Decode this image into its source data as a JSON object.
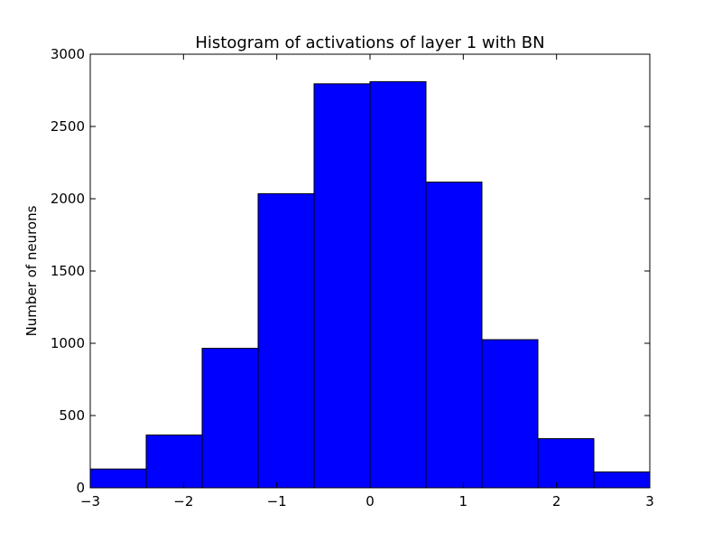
{
  "chart_data": {
    "type": "bar",
    "title": "Histogram of activations of layer 1  with BN",
    "xlabel": "",
    "ylabel": "Number of neurons",
    "xlim": [
      -3,
      3
    ],
    "ylim": [
      0,
      3000
    ],
    "bin_edges": [
      -3,
      -2.4,
      -1.8,
      -1.2,
      -0.6,
      0,
      0.6,
      1.2,
      1.8,
      2.4,
      3
    ],
    "values": [
      130,
      365,
      965,
      2035,
      2795,
      2810,
      2115,
      1025,
      340,
      110
    ],
    "xticks": [
      -3,
      -2,
      -1,
      0,
      1,
      2,
      3
    ],
    "xtick_labels": [
      "−3",
      "−2",
      "−1",
      "0",
      "1",
      "2",
      "3"
    ],
    "yticks": [
      0,
      500,
      1000,
      1500,
      2000,
      2500,
      3000
    ],
    "ytick_labels": [
      "0",
      "500",
      "1000",
      "1500",
      "2000",
      "2500",
      "3000"
    ],
    "bar_color": "#0000ff",
    "edge_color": "#000000",
    "grid": false,
    "legend": "none"
  }
}
